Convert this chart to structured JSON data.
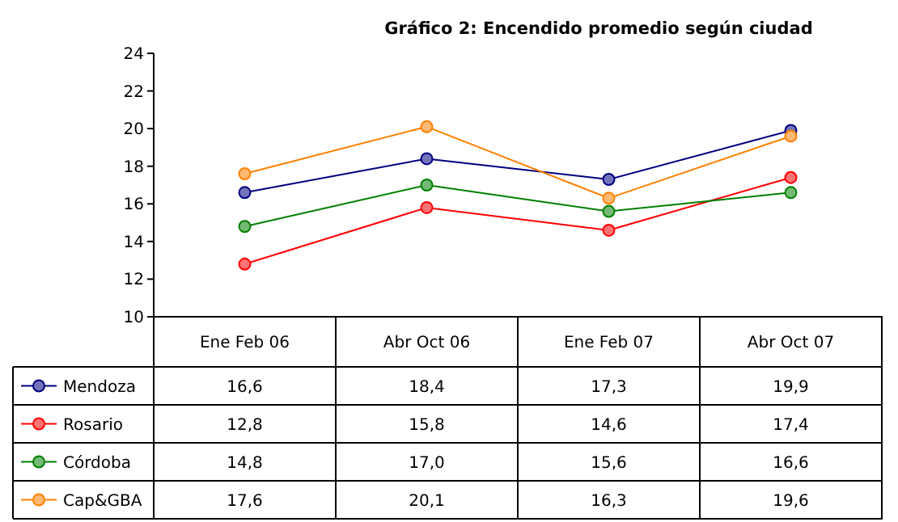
{
  "chart_data": {
    "type": "line",
    "title": "Gráfico 2: Encendido promedio según ciudad",
    "categories": [
      "Ene Feb 06",
      "Abr Oct 06",
      "Ene Feb 07",
      "Abr Oct 07"
    ],
    "series": [
      {
        "name": "Mendoza",
        "color": "#000080",
        "values": [
          16.6,
          18.4,
          17.3,
          19.9
        ],
        "value_labels": [
          "16,6",
          "18,4",
          "17,3",
          "19,9"
        ]
      },
      {
        "name": "Rosario",
        "color": "#ff0000",
        "values": [
          12.8,
          15.8,
          14.6,
          17.4
        ],
        "value_labels": [
          "12,8",
          "15,8",
          "14,6",
          "17,4"
        ]
      },
      {
        "name": "Córdoba",
        "color": "#008000",
        "values": [
          14.8,
          17.0,
          15.6,
          16.6
        ],
        "value_labels": [
          "14,8",
          "17,0",
          "15,6",
          "16,6"
        ]
      },
      {
        "name": "Cap&GBA",
        "color": "#ff8000",
        "values": [
          17.6,
          20.1,
          16.3,
          19.6
        ],
        "value_labels": [
          "17,6",
          "20,1",
          "16,3",
          "19,6"
        ]
      }
    ],
    "ylim": [
      10,
      24
    ],
    "yticks": [
      10,
      12,
      14,
      16,
      18,
      20,
      22,
      24
    ],
    "grid": false,
    "legend": "bottom",
    "marker": "circle",
    "line_style": "solid"
  }
}
